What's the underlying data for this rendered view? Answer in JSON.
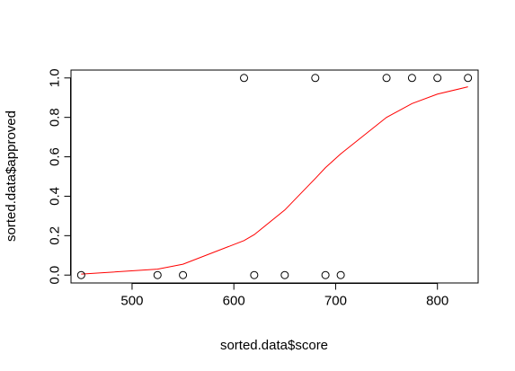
{
  "chart_data": {
    "type": "scatter",
    "xlabel": "sorted.data$score",
    "ylabel": "sorted.data$approved",
    "xlim": [
      440,
      840
    ],
    "ylim": [
      -0.04,
      1.04
    ],
    "x_ticks": [
      500,
      600,
      700,
      800
    ],
    "y_ticks": [
      0.0,
      0.2,
      0.4,
      0.6,
      0.8,
      1.0
    ],
    "x_tick_labels": [
      "500",
      "600",
      "700",
      "800"
    ],
    "y_tick_labels": [
      "0.0",
      "0.2",
      "0.4",
      "0.6",
      "0.8",
      "1.0"
    ],
    "grid": false,
    "series": [
      {
        "kind": "points",
        "marker": "open-circle",
        "color": "#000000",
        "points": [
          {
            "x": 450,
            "y": 0
          },
          {
            "x": 525,
            "y": 0
          },
          {
            "x": 550,
            "y": 0
          },
          {
            "x": 610,
            "y": 1
          },
          {
            "x": 620,
            "y": 0
          },
          {
            "x": 650,
            "y": 0
          },
          {
            "x": 680,
            "y": 1
          },
          {
            "x": 690,
            "y": 0
          },
          {
            "x": 705,
            "y": 0
          },
          {
            "x": 750,
            "y": 1
          },
          {
            "x": 775,
            "y": 1
          },
          {
            "x": 800,
            "y": 1
          },
          {
            "x": 830,
            "y": 1
          }
        ]
      },
      {
        "kind": "line",
        "color": "#ff0000",
        "points": [
          {
            "x": 450,
            "y": 0.005
          },
          {
            "x": 525,
            "y": 0.03
          },
          {
            "x": 550,
            "y": 0.055
          },
          {
            "x": 610,
            "y": 0.175
          },
          {
            "x": 620,
            "y": 0.205
          },
          {
            "x": 650,
            "y": 0.33
          },
          {
            "x": 680,
            "y": 0.49
          },
          {
            "x": 690,
            "y": 0.545
          },
          {
            "x": 705,
            "y": 0.615
          },
          {
            "x": 750,
            "y": 0.8
          },
          {
            "x": 775,
            "y": 0.87
          },
          {
            "x": 800,
            "y": 0.918
          },
          {
            "x": 830,
            "y": 0.955
          }
        ]
      }
    ]
  }
}
